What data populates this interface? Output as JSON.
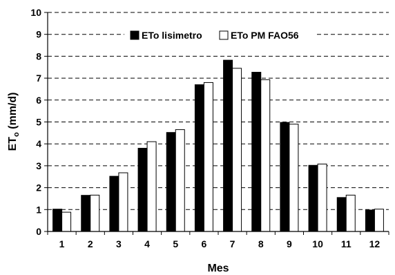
{
  "chart_data": {
    "type": "bar",
    "categories": [
      "1",
      "2",
      "3",
      "4",
      "5",
      "6",
      "7",
      "8",
      "9",
      "10",
      "11",
      "12"
    ],
    "series": [
      {
        "name": "ETo lisimetro",
        "color": "#000000",
        "values": [
          1.02,
          1.65,
          2.52,
          3.8,
          4.52,
          6.7,
          7.82,
          7.27,
          4.98,
          3.02,
          1.55,
          0.98
        ]
      },
      {
        "name": "ETo PM FAO56",
        "color": "#ffffff",
        "values": [
          0.88,
          1.66,
          2.68,
          4.1,
          4.65,
          6.8,
          7.45,
          6.93,
          4.9,
          3.08,
          1.66,
          1.02
        ]
      }
    ],
    "title": "",
    "xlabel": "Mes",
    "ylabel": "ETo (mm/d)",
    "ylabel_main": "ET",
    "ylabel_sub": "o",
    "ylabel_rest": " (mm/d)",
    "ylim": [
      0,
      10
    ],
    "yticks": [
      "0",
      "1",
      "2",
      "3",
      "4",
      "5",
      "6",
      "7",
      "8",
      "9",
      "10"
    ],
    "grid": "horizontal dashed",
    "legend_position": "top"
  }
}
